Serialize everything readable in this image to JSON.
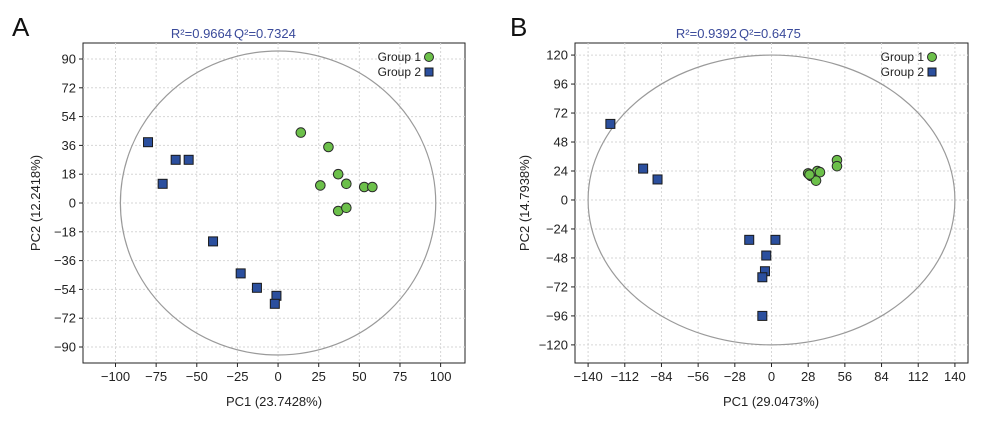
{
  "colors": {
    "group1": "#6cc04a",
    "group2": "#2b4f9e",
    "ellipse": "#9a9a9a",
    "grid": "#d6d6d6",
    "stat_text": "#3a4a9a"
  },
  "chart_data": [
    {
      "type": "scatter",
      "panel_letter": "A",
      "stats": {
        "r2_label": "R²=0.9664",
        "q2_label": "Q²=0.7324"
      },
      "xlabel": "PC1 (23.7428%)",
      "ylabel": "PC2 (12.2418%)",
      "xlim": [
        -120,
        115
      ],
      "ylim": [
        -100,
        100
      ],
      "xticks": [
        -100,
        -75,
        -50,
        -25,
        0,
        25,
        50,
        75,
        100
      ],
      "yticks": [
        90,
        72,
        54,
        36,
        18,
        0,
        -18,
        -36,
        -54,
        -72,
        -90
      ],
      "grid": true,
      "legend_position": "top-right",
      "ellipse": {
        "center": [
          0,
          0
        ],
        "rx": 97,
        "ry": 95
      },
      "series": [
        {
          "name": "Group 1",
          "marker": "circle",
          "color_key": "group1",
          "points": [
            [
              14,
              44
            ],
            [
              31,
              35
            ],
            [
              37,
              18
            ],
            [
              26,
              11
            ],
            [
              42,
              12
            ],
            [
              53,
              10
            ],
            [
              58,
              10
            ],
            [
              37,
              -5
            ],
            [
              42,
              -3
            ]
          ]
        },
        {
          "name": "Group 2",
          "marker": "square",
          "color_key": "group2",
          "points": [
            [
              -80,
              38
            ],
            [
              -63,
              27
            ],
            [
              -55,
              27
            ],
            [
              -71,
              12
            ],
            [
              -40,
              -24
            ],
            [
              -23,
              -44
            ],
            [
              -13,
              -53
            ],
            [
              -1,
              -58
            ],
            [
              -2,
              -63
            ]
          ]
        }
      ]
    },
    {
      "type": "scatter",
      "panel_letter": "B",
      "stats": {
        "r2_label": "R²=0.9392",
        "q2_label": "Q²=0.6475"
      },
      "xlabel": "PC1 (29.0473%)",
      "ylabel": "PC2 (14.7938%)",
      "xlim": [
        -150,
        150
      ],
      "ylim": [
        -135,
        130
      ],
      "xticks": [
        -140,
        -112,
        -84,
        -56,
        -28,
        0,
        28,
        56,
        84,
        112,
        140
      ],
      "yticks": [
        120,
        96,
        72,
        48,
        24,
        0,
        -24,
        -48,
        -72,
        -96,
        -120
      ],
      "grid": true,
      "legend_position": "top-right",
      "ellipse": {
        "center": [
          0,
          0
        ],
        "rx": 140,
        "ry": 120
      },
      "series": [
        {
          "name": "Group 1",
          "marker": "circle",
          "color_key": "group1",
          "points": [
            [
              28,
              22
            ],
            [
              30,
              20
            ],
            [
              35,
              24
            ],
            [
              37,
              23
            ],
            [
              34,
              16
            ],
            [
              50,
              33
            ],
            [
              50,
              28
            ],
            [
              29,
              21
            ]
          ]
        },
        {
          "name": "Group 2",
          "marker": "square",
          "color_key": "group2",
          "points": [
            [
              -123,
              63
            ],
            [
              -98,
              26
            ],
            [
              -87,
              17
            ],
            [
              -17,
              -33
            ],
            [
              3,
              -33
            ],
            [
              -4,
              -46
            ],
            [
              -5,
              -59
            ],
            [
              -7,
              -64
            ],
            [
              -7,
              -96
            ]
          ]
        }
      ]
    }
  ]
}
